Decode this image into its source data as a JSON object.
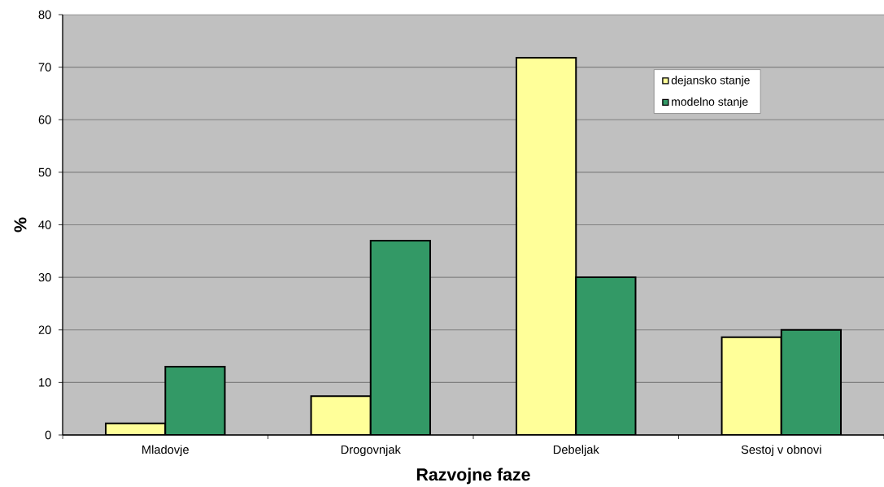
{
  "chart_data": {
    "type": "bar",
    "xlabel": "Razvojne faze",
    "ylabel": "%",
    "categories": [
      "Mladovje",
      "Drogovnjak",
      "Debeljak",
      "Sestoj v obnovi"
    ],
    "series": [
      {
        "name": "dejansko stanje",
        "color": "#ffff99",
        "values": [
          2.2,
          7.4,
          71.8,
          18.6
        ]
      },
      {
        "name": "modelno stanje",
        "color": "#339966",
        "values": [
          13,
          37,
          30,
          20
        ]
      }
    ],
    "ylim": [
      0,
      80
    ],
    "yticks": [
      0,
      10,
      20,
      30,
      40,
      50,
      60,
      70,
      80
    ],
    "grid": "y",
    "legend": "top right"
  }
}
